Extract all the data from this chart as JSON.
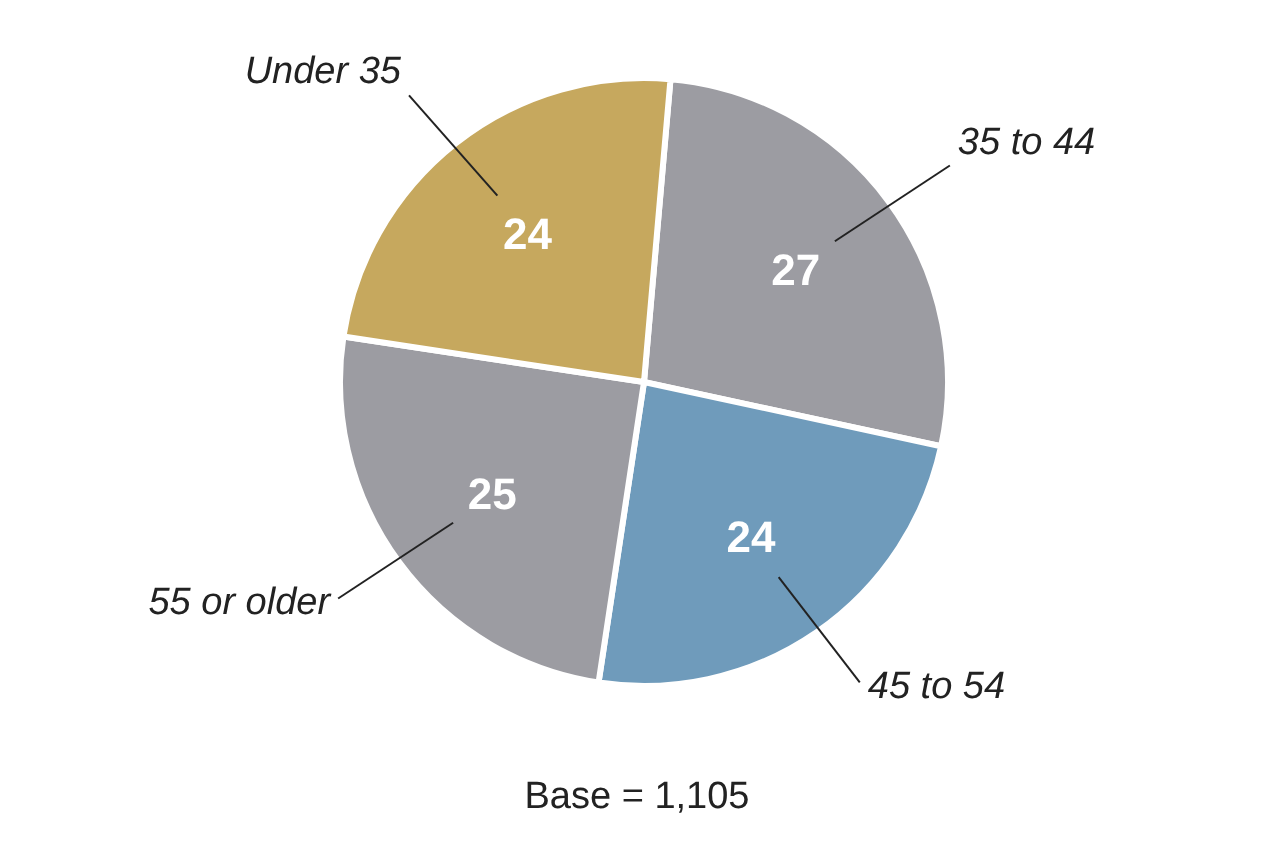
{
  "chart_data": {
    "type": "pie",
    "categories": [
      "35 to 44",
      "45 to 54",
      "55 or older",
      "Under 35"
    ],
    "values": [
      27,
      24,
      25,
      24
    ],
    "colors": [
      "#9c9ca2",
      "#6f9bbb",
      "#9c9ca2",
      "#c6a85e"
    ],
    "data_labels": true,
    "legend": false,
    "annotations": [
      "Base = 1,105"
    ]
  }
}
